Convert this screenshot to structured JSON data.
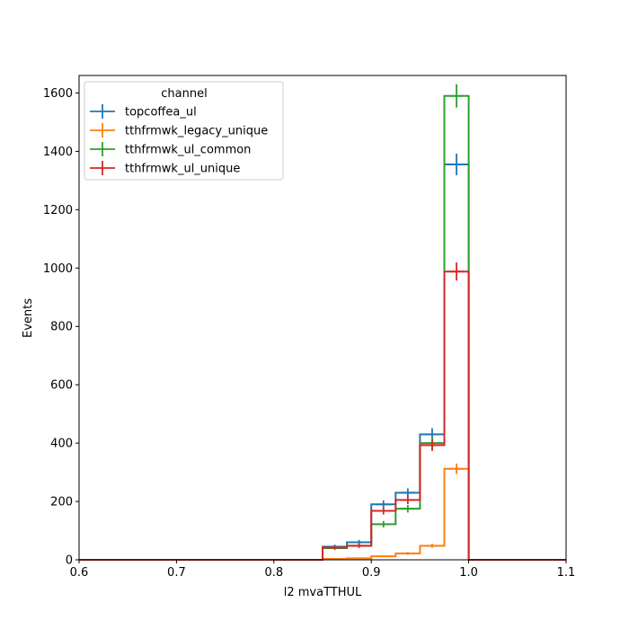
{
  "chart_data": {
    "type": "histogram-step",
    "xlabel": "l2 mvaTTHUL",
    "ylabel": "Events",
    "xlim": [
      0.6,
      1.1
    ],
    "ylim": [
      0,
      1660
    ],
    "xticks": [
      0.6,
      0.7,
      0.8,
      0.9,
      1.0,
      1.1
    ],
    "xtick_labels": [
      "0.6",
      "0.7",
      "0.8",
      "0.9",
      "1.0",
      "1.1"
    ],
    "yticks": [
      0,
      200,
      400,
      600,
      800,
      1000,
      1200,
      1400,
      1600
    ],
    "ytick_labels": [
      "0",
      "200",
      "400",
      "600",
      "800",
      "1000",
      "1200",
      "1400",
      "1600"
    ],
    "bin_edges": [
      0.6,
      0.625,
      0.65,
      0.675,
      0.7,
      0.725,
      0.75,
      0.775,
      0.8,
      0.825,
      0.85,
      0.875,
      0.9,
      0.925,
      0.95,
      0.975,
      1.0,
      1.025,
      1.05,
      1.075,
      1.1
    ],
    "grid": false,
    "legend": {
      "title": "channel",
      "position": "top-left"
    },
    "series": [
      {
        "name": "topcoffea_ul",
        "color": "#1f77b4",
        "values": [
          0,
          0,
          0,
          0,
          0,
          0,
          0,
          0,
          0,
          0,
          45,
          60,
          190,
          230,
          430,
          1355,
          0,
          0,
          0,
          0
        ],
        "errors": [
          0,
          0,
          0,
          0,
          0,
          0,
          0,
          0,
          0,
          0,
          7,
          8,
          14,
          15,
          21,
          37,
          0,
          0,
          0,
          0
        ]
      },
      {
        "name": "tthfrmwk_legacy_unique",
        "color": "#ff7f0e",
        "values": [
          0,
          0,
          0,
          0,
          0,
          0,
          0,
          0,
          0,
          0,
          3,
          5,
          12,
          22,
          48,
          312,
          0,
          0,
          0,
          0
        ],
        "errors": [
          0,
          0,
          0,
          0,
          0,
          0,
          0,
          0,
          0,
          0,
          2,
          2,
          3,
          5,
          7,
          18,
          0,
          0,
          0,
          0
        ]
      },
      {
        "name": "tthfrmwk_ul_common",
        "color": "#2ca02c",
        "values": [
          0,
          0,
          0,
          0,
          0,
          0,
          0,
          0,
          0,
          0,
          40,
          48,
          122,
          175,
          400,
          1590,
          0,
          0,
          0,
          0
        ],
        "errors": [
          0,
          0,
          0,
          0,
          0,
          0,
          0,
          0,
          0,
          0,
          6,
          7,
          11,
          13,
          20,
          40,
          0,
          0,
          0,
          0
        ]
      },
      {
        "name": "tthfrmwk_ul_unique",
        "color": "#d62728",
        "values": [
          0,
          0,
          0,
          0,
          0,
          0,
          0,
          0,
          0,
          0,
          42,
          48,
          168,
          205,
          393,
          988,
          0,
          0,
          0,
          0
        ],
        "errors": [
          0,
          0,
          0,
          0,
          0,
          0,
          0,
          0,
          0,
          0,
          6,
          7,
          13,
          14,
          20,
          31,
          0,
          0,
          0,
          0
        ]
      }
    ]
  }
}
